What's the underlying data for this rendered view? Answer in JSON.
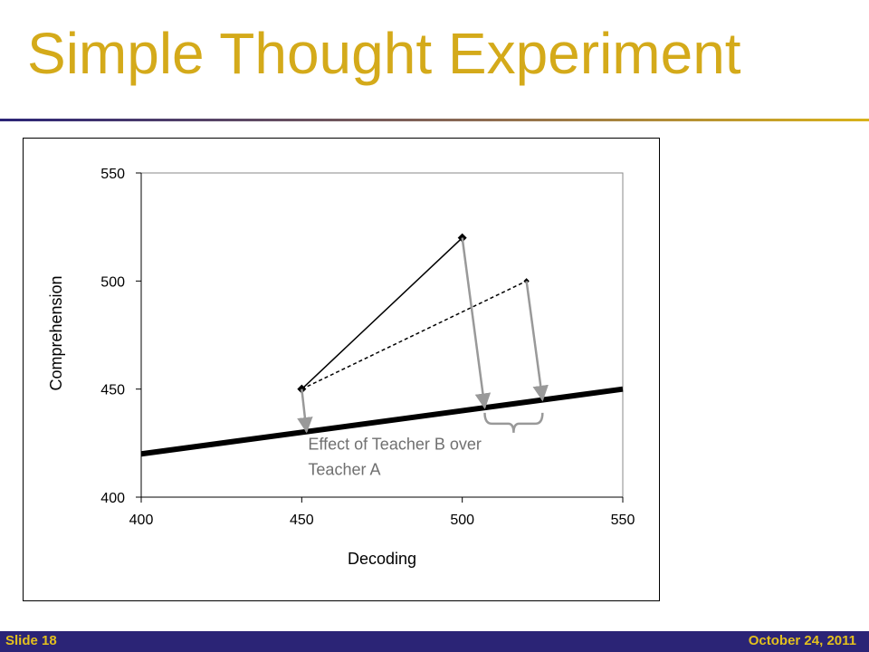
{
  "slide": {
    "title": "Simple Thought Experiment",
    "footer_left": "Slide 18",
    "footer_right": "October 24, 2011"
  },
  "colors": {
    "title": "#d4aa1a",
    "footer_bg": "#2b2476",
    "footer_text": "#e3c01e",
    "arrow": "#999999",
    "annotation": "#707070"
  },
  "chart_data": {
    "type": "line",
    "xlabel": "Decoding",
    "ylabel": "Comprehension",
    "xlim": [
      400,
      550
    ],
    "ylim": [
      400,
      550
    ],
    "xticks": [
      400,
      450,
      500,
      550
    ],
    "yticks": [
      400,
      450,
      500,
      550
    ],
    "grid": false,
    "series": [
      {
        "style": "solid-thin-marker",
        "x": [
          450,
          500
        ],
        "y": [
          450,
          520
        ]
      },
      {
        "style": "dashed-small-marker",
        "x": [
          450,
          520
        ],
        "y": [
          450,
          500
        ]
      },
      {
        "style": "solid-thick-regression",
        "x": [
          400,
          550
        ],
        "y": [
          420,
          450
        ]
      }
    ],
    "arrows": [
      {
        "from": [
          450,
          450
        ],
        "to": [
          451.5,
          430.3
        ]
      },
      {
        "from": [
          500,
          520
        ],
        "to": [
          507,
          441.4
        ]
      },
      {
        "from": [
          520,
          500
        ],
        "to": [
          525,
          445
        ]
      }
    ],
    "brace": {
      "x_from": 507,
      "x_to": 525,
      "y": 434
    },
    "annotation": {
      "lines": [
        "Effect of Teacher B over",
        "Teacher A"
      ],
      "x": 452,
      "y": 422
    }
  }
}
